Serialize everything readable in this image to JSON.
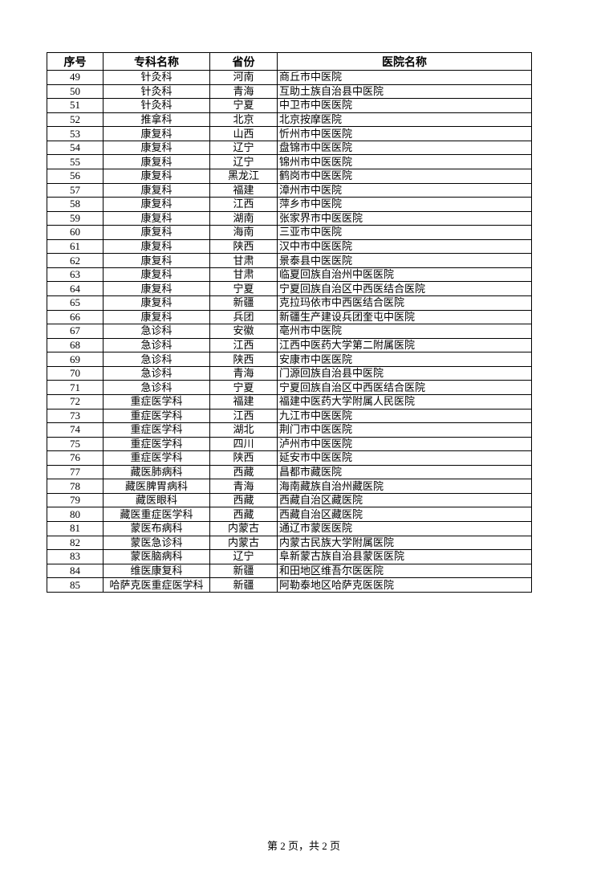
{
  "table": {
    "headers": [
      "序号",
      "专科名称",
      "省份",
      "医院名称"
    ],
    "rows": [
      [
        "49",
        "针灸科",
        "河南",
        "商丘市中医院"
      ],
      [
        "50",
        "针灸科",
        "青海",
        "互助土族自治县中医院"
      ],
      [
        "51",
        "针灸科",
        "宁夏",
        "中卫市中医医院"
      ],
      [
        "52",
        "推拿科",
        "北京",
        "北京按摩医院"
      ],
      [
        "53",
        "康复科",
        "山西",
        "忻州市中医医院"
      ],
      [
        "54",
        "康复科",
        "辽宁",
        "盘锦市中医医院"
      ],
      [
        "55",
        "康复科",
        "辽宁",
        "锦州市中医医院"
      ],
      [
        "56",
        "康复科",
        "黑龙江",
        "鹤岗市中医医院"
      ],
      [
        "57",
        "康复科",
        "福建",
        "漳州市中医院"
      ],
      [
        "58",
        "康复科",
        "江西",
        "萍乡市中医院"
      ],
      [
        "59",
        "康复科",
        "湖南",
        "张家界市中医医院"
      ],
      [
        "60",
        "康复科",
        "海南",
        "三亚市中医院"
      ],
      [
        "61",
        "康复科",
        "陕西",
        "汉中市中医医院"
      ],
      [
        "62",
        "康复科",
        "甘肃",
        "景泰县中医医院"
      ],
      [
        "63",
        "康复科",
        "甘肃",
        "临夏回族自治州中医医院"
      ],
      [
        "64",
        "康复科",
        "宁夏",
        "宁夏回族自治区中西医结合医院"
      ],
      [
        "65",
        "康复科",
        "新疆",
        "克拉玛依市中西医结合医院"
      ],
      [
        "66",
        "康复科",
        "兵团",
        "新疆生产建设兵团奎屯中医院"
      ],
      [
        "67",
        "急诊科",
        "安徽",
        "亳州市中医院"
      ],
      [
        "68",
        "急诊科",
        "江西",
        "江西中医药大学第二附属医院"
      ],
      [
        "69",
        "急诊科",
        "陕西",
        "安康市中医医院"
      ],
      [
        "70",
        "急诊科",
        "青海",
        "门源回族自治县中医院"
      ],
      [
        "71",
        "急诊科",
        "宁夏",
        "宁夏回族自治区中西医结合医院"
      ],
      [
        "72",
        "重症医学科",
        "福建",
        "福建中医药大学附属人民医院"
      ],
      [
        "73",
        "重症医学科",
        "江西",
        "九江市中医医院"
      ],
      [
        "74",
        "重症医学科",
        "湖北",
        "荆门市中医医院"
      ],
      [
        "75",
        "重症医学科",
        "四川",
        "泸州市中医医院"
      ],
      [
        "76",
        "重症医学科",
        "陕西",
        "延安市中医医院"
      ],
      [
        "77",
        "藏医肺病科",
        "西藏",
        "昌都市藏医院"
      ],
      [
        "78",
        "藏医脾胃病科",
        "青海",
        "海南藏族自治州藏医院"
      ],
      [
        "79",
        "藏医眼科",
        "西藏",
        "西藏自治区藏医院"
      ],
      [
        "80",
        "藏医重症医学科",
        "西藏",
        "西藏自治区藏医院"
      ],
      [
        "81",
        "蒙医布病科",
        "内蒙古",
        "通辽市蒙医医院"
      ],
      [
        "82",
        "蒙医急诊科",
        "内蒙古",
        "内蒙古民族大学附属医院"
      ],
      [
        "83",
        "蒙医脑病科",
        "辽宁",
        "阜新蒙古族自治县蒙医医院"
      ],
      [
        "84",
        "维医康复科",
        "新疆",
        "和田地区维吾尔医医院"
      ],
      [
        "85",
        "哈萨克医重症医学科",
        "新疆",
        "阿勒泰地区哈萨克医医院"
      ]
    ]
  },
  "footer": {
    "page_label": "第 2 页，共 2 页"
  }
}
